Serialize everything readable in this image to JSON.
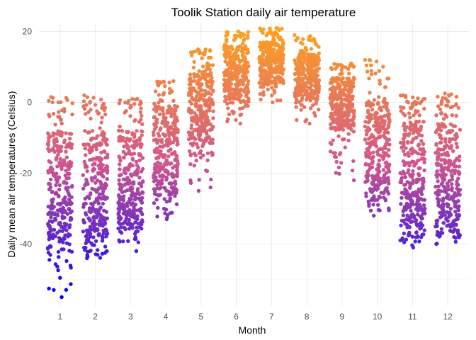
{
  "chart_data": {
    "type": "scatter",
    "title": "Toolik Station daily air temperature",
    "xlabel": "Month",
    "ylabel": "Daily mean air temperatures (Celsius)",
    "x_ticks": [
      "1",
      "2",
      "3",
      "4",
      "5",
      "6",
      "7",
      "8",
      "9",
      "10",
      "11",
      "12"
    ],
    "y_ticks": [
      -40,
      -20,
      0,
      20
    ],
    "xlim": [
      0.4,
      12.6
    ],
    "ylim": [
      -57.5,
      22.5
    ],
    "jitter": "horizontal jitter within each month",
    "color_scale": {
      "low_value": -55,
      "high_value": 20,
      "low_color": "#0000ff",
      "mid_color": "#d0558e",
      "high_color": "#ffa020"
    },
    "grid": true,
    "legend": "none",
    "months": [
      {
        "month": 1,
        "min": -55,
        "q10": -40,
        "median": -27,
        "q90": -8,
        "max": 1.5
      },
      {
        "month": 2,
        "min": -44,
        "q10": -38,
        "median": -26,
        "q90": -8,
        "max": 2
      },
      {
        "month": 3,
        "min": -42,
        "q10": -35,
        "median": -23,
        "q90": -8,
        "max": 1
      },
      {
        "month": 4,
        "min": -33,
        "q10": -26,
        "median": -13,
        "q90": -1,
        "max": 6
      },
      {
        "month": 5,
        "min": -25,
        "q10": -12,
        "median": -2,
        "q90": 9,
        "max": 15
      },
      {
        "month": 6,
        "min": -6,
        "q10": 0,
        "median": 8,
        "q90": 16,
        "max": 20
      },
      {
        "month": 7,
        "min": 0,
        "q10": 5,
        "median": 11,
        "q90": 17,
        "max": 21
      },
      {
        "month": 8,
        "min": -6,
        "q10": 1,
        "median": 7,
        "q90": 14,
        "max": 19
      },
      {
        "month": 9,
        "min": -22,
        "q10": -8,
        "median": 0,
        "q90": 7,
        "max": 11
      },
      {
        "month": 10,
        "min": -32,
        "q10": -25,
        "median": -12,
        "q90": 1,
        "max": 12
      },
      {
        "month": 11,
        "min": -41,
        "q10": -35,
        "median": -22,
        "q90": -5,
        "max": 2
      },
      {
        "month": 12,
        "min": -40,
        "q10": -36,
        "median": -23,
        "q90": -6,
        "max": 2.5
      }
    ]
  }
}
